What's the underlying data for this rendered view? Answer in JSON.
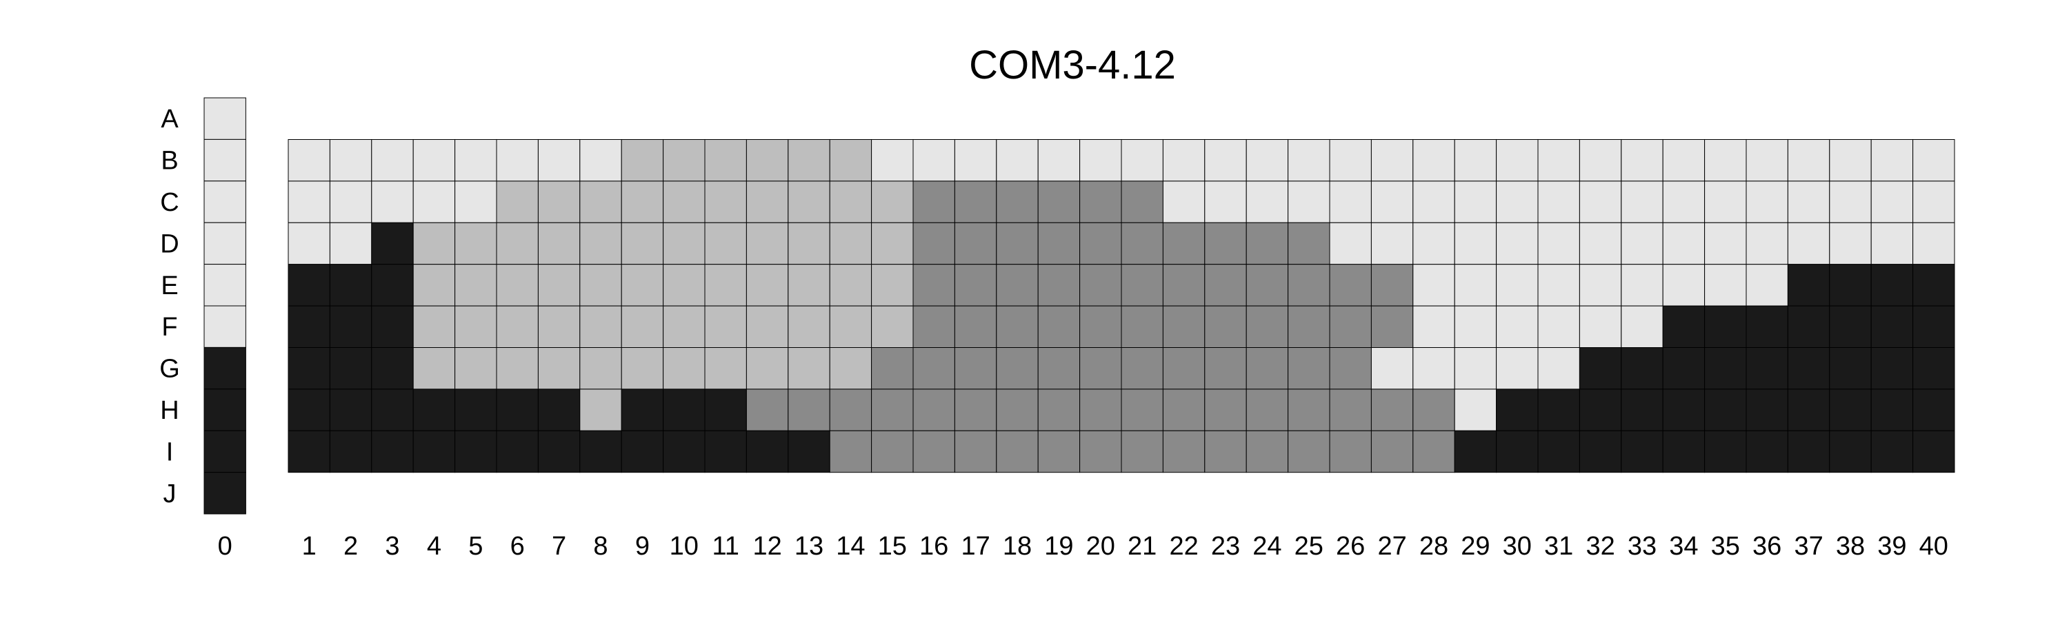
{
  "chart_data": {
    "type": "heatmap",
    "title": "COM3-4.12",
    "row_labels": [
      "A",
      "B",
      "C",
      "D",
      "E",
      "F",
      "G",
      "H",
      "I",
      "J"
    ],
    "column0": {
      "label": "0",
      "cells": "LLLLLLKKKK"
    },
    "columns": [
      "1",
      "2",
      "3",
      "4",
      "5",
      "6",
      "7",
      "8",
      "9",
      "10",
      "11",
      "12",
      "13",
      "14",
      "15",
      "16",
      "17",
      "18",
      "19",
      "20",
      "21",
      "22",
      "23",
      "24",
      "25",
      "26",
      "27",
      "28",
      "29",
      "30",
      "31",
      "32",
      "33",
      "34",
      "35",
      "36",
      "37",
      "38",
      "39",
      "40"
    ],
    "grid_rows": [
      "B",
      "C",
      "D",
      "E",
      "F",
      "G",
      "H",
      "I"
    ],
    "grid": [
      "LLLLLLLLSSSSSSLLLLLLLLLLLLLLLLLLLLLLLLLL",
      "LLLLLSSSSSSSSSSDDDDDDLLLLLLLLLLLLLLLLLLL",
      "LLKSSSSSSSSSSSSDDDDDDDDDDLLLLLLLLLLLLLLL",
      "KKKSSSSSSSSSSSSDDDDDDDDDDDDLLLLLLLLLKKKK",
      "KKKSSSSSSSSSSSSDDDDDDDDDDDDLLLLLLKKKKKKK",
      "KKKSSSSSSSSSSSDDDDDDDDDDDDLLLLLKKKKKKKKK",
      "KKKKKKKSKKKDDDDDDDDDDDDDDDDDLKKKKKKKKKKK",
      "KKKKKKKKKKKKKDDDDDDDDDDDDDDDKKKKKKKKKKKK"
    ],
    "legend": {
      "L": "#e6e6e6",
      "S": "#bebebe",
      "D": "#8a8a8a",
      "K": "#1a1a1a"
    },
    "grid_on": true
  }
}
